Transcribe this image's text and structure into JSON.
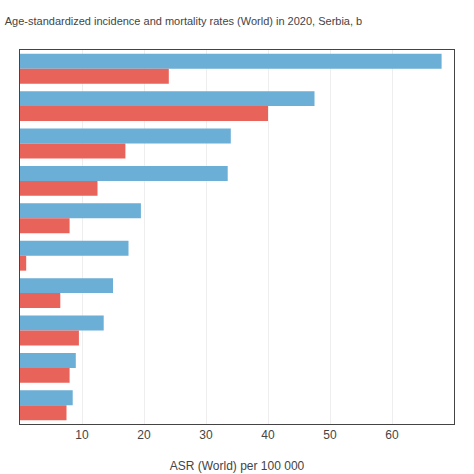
{
  "chart_data": {
    "type": "bar",
    "orientation": "horizontal",
    "title": "Age-standardized incidence and mortality rates (World) in 2020, Serbia, b",
    "xlabel": "ASR (World) per 100 000",
    "categories": [
      null,
      null,
      null,
      null,
      null,
      null,
      null,
      null,
      null,
      null
    ],
    "series": [
      {
        "color": "#6BAED6",
        "values": [
          68.0,
          47.5,
          34.0,
          33.5,
          19.5,
          17.5,
          15.0,
          13.5,
          9.0,
          8.5
        ]
      },
      {
        "color": "#E8635A",
        "values": [
          24.0,
          40.0,
          17.0,
          12.5,
          8.0,
          1.0,
          6.5,
          9.5,
          8.0,
          7.5
        ]
      }
    ],
    "xlim": [
      0,
      70
    ],
    "xticks": [
      10,
      20,
      30,
      40,
      50,
      60
    ],
    "grid": true,
    "tick_labels": "x"
  }
}
